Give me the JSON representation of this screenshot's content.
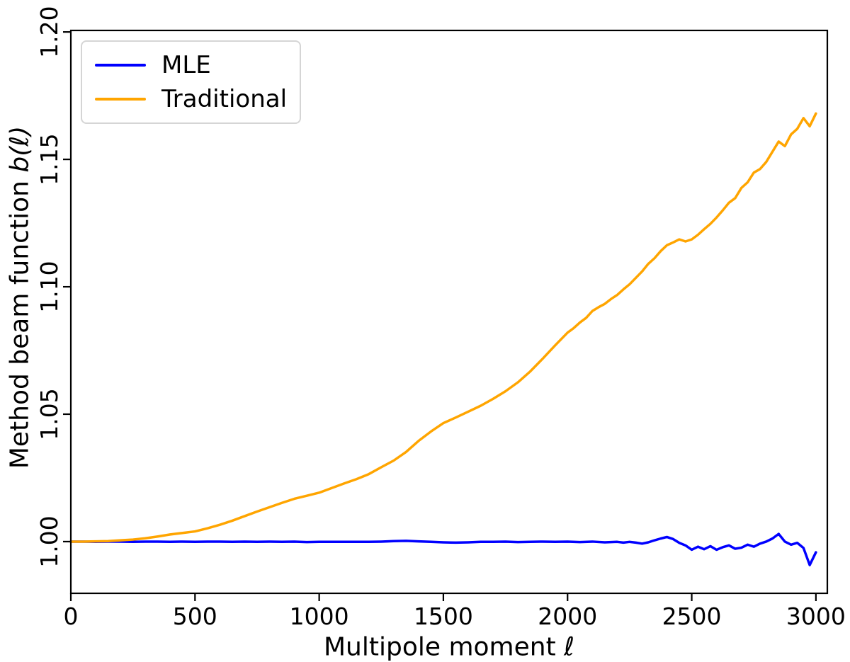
{
  "chart_data": {
    "type": "line",
    "title": "",
    "xlabel": "Multipole moment ℓ",
    "xlabel_prefix": "Multipole moment ",
    "xlabel_math": "ℓ",
    "ylabel": "Method beam function b(ℓ)",
    "ylabel_prefix": "Method beam function ",
    "ylabel_math": "b(ℓ)",
    "xlim": [
      0,
      3046
    ],
    "ylim": [
      0.9797,
      1.2006
    ],
    "xticks": [
      0,
      500,
      1000,
      1500,
      2000,
      2500,
      3000
    ],
    "xtick_labels": [
      "0",
      "500",
      "1000",
      "1500",
      "2000",
      "2500",
      "3000"
    ],
    "yticks": [
      1.0,
      1.05,
      1.1,
      1.15,
      1.2
    ],
    "ytick_labels": [
      "1.00",
      "1.05",
      "1.10",
      "1.15",
      "1.20"
    ],
    "grid": false,
    "background": "#ffffff",
    "axis_color": "#000000",
    "legend": {
      "position": "upper-left",
      "entries": [
        {
          "label": "MLE",
          "color": "#0000ff"
        },
        {
          "label": "Traditional",
          "color": "#ffa500"
        }
      ]
    },
    "series": [
      {
        "name": "MLE",
        "color": "#0000ff",
        "points": [
          [
            0,
            1.0
          ],
          [
            50,
            1.0
          ],
          [
            100,
            0.9999
          ],
          [
            150,
            1.0
          ],
          [
            200,
            1.0
          ],
          [
            250,
            0.9999
          ],
          [
            300,
            1.0
          ],
          [
            350,
            1.0
          ],
          [
            400,
            0.9999
          ],
          [
            450,
            1.0
          ],
          [
            500,
            0.9999
          ],
          [
            550,
            1.0
          ],
          [
            600,
            1.0
          ],
          [
            650,
            0.9999
          ],
          [
            700,
            1.0
          ],
          [
            750,
            0.9999
          ],
          [
            800,
            1.0
          ],
          [
            850,
            0.9999
          ],
          [
            900,
            1.0
          ],
          [
            950,
            0.9998
          ],
          [
            1000,
            0.9999
          ],
          [
            1050,
            0.9999
          ],
          [
            1100,
            0.9999
          ],
          [
            1150,
            0.9999
          ],
          [
            1200,
            0.9999
          ],
          [
            1250,
            1.0
          ],
          [
            1300,
            1.0002
          ],
          [
            1350,
            1.0003
          ],
          [
            1400,
            1.0001
          ],
          [
            1450,
            0.9999
          ],
          [
            1500,
            0.9997
          ],
          [
            1550,
            0.9996
          ],
          [
            1600,
            0.9997
          ],
          [
            1650,
            0.9999
          ],
          [
            1700,
            0.9999
          ],
          [
            1750,
            1.0
          ],
          [
            1800,
            0.9998
          ],
          [
            1850,
            0.9999
          ],
          [
            1900,
            1.0
          ],
          [
            1950,
            0.9999
          ],
          [
            2000,
            1.0
          ],
          [
            2050,
            0.9998
          ],
          [
            2100,
            1.0
          ],
          [
            2150,
            0.9997
          ],
          [
            2200,
            0.9999
          ],
          [
            2225,
            0.9996
          ],
          [
            2250,
            0.9999
          ],
          [
            2275,
            0.9996
          ],
          [
            2300,
            0.9992
          ],
          [
            2325,
            0.9997
          ],
          [
            2350,
            1.0005
          ],
          [
            2375,
            1.0012
          ],
          [
            2400,
            1.0018
          ],
          [
            2425,
            1.001
          ],
          [
            2450,
            0.9995
          ],
          [
            2475,
            0.9985
          ],
          [
            2500,
            0.9968
          ],
          [
            2525,
            0.998
          ],
          [
            2550,
            0.997
          ],
          [
            2575,
            0.9982
          ],
          [
            2600,
            0.9968
          ],
          [
            2625,
            0.9978
          ],
          [
            2650,
            0.9985
          ],
          [
            2675,
            0.9972
          ],
          [
            2700,
            0.9976
          ],
          [
            2725,
            0.9988
          ],
          [
            2750,
            0.998
          ],
          [
            2775,
            0.9992
          ],
          [
            2800,
            1.0
          ],
          [
            2825,
            1.0012
          ],
          [
            2850,
            1.003
          ],
          [
            2875,
            1.0
          ],
          [
            2900,
            0.9988
          ],
          [
            2925,
            0.9995
          ],
          [
            2950,
            0.9975
          ],
          [
            2975,
            0.9908
          ],
          [
            3000,
            0.9958
          ]
        ]
      },
      {
        "name": "Traditional",
        "color": "#ffa500",
        "points": [
          [
            0,
            1.0
          ],
          [
            50,
            1.0
          ],
          [
            100,
            1.0001
          ],
          [
            150,
            1.0002
          ],
          [
            200,
            1.0005
          ],
          [
            250,
            1.0008
          ],
          [
            300,
            1.0013
          ],
          [
            350,
            1.002
          ],
          [
            400,
            1.0028
          ],
          [
            450,
            1.0034
          ],
          [
            500,
            1.004
          ],
          [
            550,
            1.0052
          ],
          [
            600,
            1.0066
          ],
          [
            650,
            1.0082
          ],
          [
            700,
            1.01
          ],
          [
            750,
            1.0118
          ],
          [
            800,
            1.0135
          ],
          [
            850,
            1.0152
          ],
          [
            900,
            1.0168
          ],
          [
            950,
            1.018
          ],
          [
            1000,
            1.0192
          ],
          [
            1050,
            1.021
          ],
          [
            1100,
            1.0228
          ],
          [
            1150,
            1.0245
          ],
          [
            1200,
            1.0265
          ],
          [
            1250,
            1.0292
          ],
          [
            1300,
            1.0318
          ],
          [
            1350,
            1.0352
          ],
          [
            1400,
            1.0395
          ],
          [
            1450,
            1.0432
          ],
          [
            1500,
            1.0465
          ],
          [
            1550,
            1.0487
          ],
          [
            1600,
            1.051
          ],
          [
            1650,
            1.0533
          ],
          [
            1700,
            1.056
          ],
          [
            1750,
            1.059
          ],
          [
            1800,
            1.0625
          ],
          [
            1850,
            1.0668
          ],
          [
            1900,
            1.0718
          ],
          [
            1950,
            1.077
          ],
          [
            2000,
            1.082
          ],
          [
            2025,
            1.0838
          ],
          [
            2050,
            1.086
          ],
          [
            2075,
            1.0878
          ],
          [
            2100,
            1.0905
          ],
          [
            2125,
            1.092
          ],
          [
            2150,
            1.0933
          ],
          [
            2175,
            1.0952
          ],
          [
            2200,
            1.0968
          ],
          [
            2225,
            1.099
          ],
          [
            2250,
            1.101
          ],
          [
            2275,
            1.1035
          ],
          [
            2300,
            1.106
          ],
          [
            2325,
            1.109
          ],
          [
            2350,
            1.1112
          ],
          [
            2375,
            1.114
          ],
          [
            2400,
            1.1163
          ],
          [
            2425,
            1.1174
          ],
          [
            2450,
            1.1186
          ],
          [
            2475,
            1.1178
          ],
          [
            2500,
            1.1186
          ],
          [
            2525,
            1.1204
          ],
          [
            2550,
            1.1226
          ],
          [
            2575,
            1.1247
          ],
          [
            2600,
            1.1272
          ],
          [
            2625,
            1.13
          ],
          [
            2650,
            1.133
          ],
          [
            2675,
            1.1348
          ],
          [
            2700,
            1.1388
          ],
          [
            2725,
            1.141
          ],
          [
            2750,
            1.1448
          ],
          [
            2775,
            1.1462
          ],
          [
            2800,
            1.149
          ],
          [
            2825,
            1.153
          ],
          [
            2850,
            1.157
          ],
          [
            2875,
            1.1552
          ],
          [
            2900,
            1.1598
          ],
          [
            2925,
            1.162
          ],
          [
            2950,
            1.1662
          ],
          [
            2975,
            1.163
          ],
          [
            3000,
            1.168
          ]
        ]
      }
    ]
  }
}
